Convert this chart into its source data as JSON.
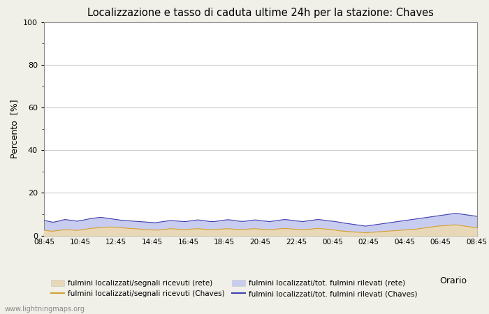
{
  "title": "Localizzazione e tasso di caduta ultime 24h per la stazione: Chaves",
  "xlabel": "Orario",
  "ylabel": "Percento  [%]",
  "ylim": [
    0,
    100
  ],
  "yticks_major": [
    0,
    20,
    40,
    60,
    80,
    100
  ],
  "yticks_minor": [
    10,
    30,
    50,
    70,
    90
  ],
  "x_labels": [
    "08:45",
    "10:45",
    "12:45",
    "14:45",
    "16:45",
    "18:45",
    "20:45",
    "22:45",
    "00:45",
    "02:45",
    "04:45",
    "06:45",
    "08:45"
  ],
  "color_fill_rete": "#e8d8b8",
  "color_fill_chaves": "#c8ccee",
  "color_line_rete": "#d4a030",
  "color_line_chaves": "#4040b0",
  "bg_color": "#ffffff",
  "fig_bg_color": "#f0f0e8",
  "watermark": "www.lightningmaps.org",
  "legend_labels": [
    "fulmini localizzati/segnali ricevuti (rete)",
    "fulmini localizzati/tot. fulmini rilevati (rete)",
    "fulmini localizzati/segnali ricevuti (Chaves)",
    "fulmini localizzati/tot. fulmini rilevati (Chaves)"
  ],
  "n_points": 145,
  "fill_rete_values": [
    2.5,
    2.3,
    2.1,
    2.0,
    2.2,
    2.4,
    2.6,
    2.8,
    2.7,
    2.6,
    2.5,
    2.4,
    2.6,
    2.8,
    3.0,
    3.2,
    3.4,
    3.5,
    3.6,
    3.7,
    3.8,
    3.9,
    4.0,
    3.9,
    3.8,
    3.7,
    3.6,
    3.5,
    3.4,
    3.3,
    3.2,
    3.1,
    3.0,
    2.9,
    2.8,
    2.7,
    2.6,
    2.5,
    2.6,
    2.7,
    2.8,
    3.0,
    3.2,
    3.1,
    3.0,
    2.9,
    2.8,
    2.7,
    2.9,
    3.0,
    3.1,
    3.2,
    3.1,
    3.0,
    2.9,
    2.8,
    2.7,
    2.8,
    2.9,
    3.0,
    3.1,
    3.2,
    3.1,
    3.0,
    2.9,
    2.8,
    2.7,
    2.8,
    3.0,
    3.1,
    3.2,
    3.1,
    3.0,
    2.9,
    2.8,
    2.7,
    2.8,
    2.9,
    3.1,
    3.2,
    3.3,
    3.2,
    3.1,
    3.0,
    2.9,
    2.8,
    2.7,
    2.8,
    2.9,
    3.0,
    3.2,
    3.3,
    3.2,
    3.1,
    3.0,
    2.9,
    2.8,
    2.5,
    2.3,
    2.1,
    2.0,
    1.9,
    1.8,
    1.7,
    1.6,
    1.5,
    1.4,
    1.3,
    1.4,
    1.5,
    1.6,
    1.7,
    1.8,
    1.9,
    2.0,
    2.1,
    2.2,
    2.3,
    2.4,
    2.5,
    2.6,
    2.7,
    2.8,
    2.9,
    3.0,
    3.2,
    3.4,
    3.6,
    3.8,
    4.0,
    4.2,
    4.4,
    4.5,
    4.6,
    4.7,
    4.8,
    4.9,
    5.0,
    4.8,
    4.6,
    4.4,
    4.2,
    4.0,
    3.8,
    3.6
  ],
  "fill_chaves_values": [
    7.0,
    6.8,
    6.5,
    6.2,
    6.5,
    6.8,
    7.2,
    7.5,
    7.3,
    7.1,
    6.9,
    6.7,
    7.0,
    7.2,
    7.5,
    7.8,
    8.0,
    8.2,
    8.4,
    8.5,
    8.3,
    8.1,
    7.9,
    7.7,
    7.5,
    7.3,
    7.1,
    7.0,
    6.9,
    6.8,
    6.7,
    6.6,
    6.5,
    6.4,
    6.3,
    6.2,
    6.1,
    6.0,
    6.2,
    6.4,
    6.6,
    6.8,
    7.0,
    6.9,
    6.8,
    6.7,
    6.6,
    6.5,
    6.7,
    6.9,
    7.1,
    7.3,
    7.2,
    7.0,
    6.8,
    6.6,
    6.5,
    6.6,
    6.8,
    7.0,
    7.2,
    7.4,
    7.3,
    7.1,
    6.9,
    6.7,
    6.6,
    6.7,
    6.9,
    7.1,
    7.3,
    7.2,
    7.0,
    6.8,
    6.7,
    6.5,
    6.7,
    6.9,
    7.1,
    7.3,
    7.5,
    7.4,
    7.2,
    7.0,
    6.8,
    6.7,
    6.5,
    6.7,
    6.9,
    7.1,
    7.3,
    7.5,
    7.4,
    7.2,
    7.0,
    6.8,
    6.7,
    6.5,
    6.3,
    6.0,
    5.8,
    5.6,
    5.4,
    5.2,
    5.0,
    4.8,
    4.6,
    4.4,
    4.6,
    4.8,
    5.0,
    5.2,
    5.4,
    5.6,
    5.8,
    6.0,
    6.2,
    6.4,
    6.6,
    6.8,
    7.0,
    7.2,
    7.4,
    7.6,
    7.8,
    8.0,
    8.2,
    8.4,
    8.6,
    8.8,
    9.0,
    9.2,
    9.4,
    9.6,
    9.8,
    10.0,
    10.2,
    10.4,
    10.2,
    10.0,
    9.8,
    9.6,
    9.4,
    9.2,
    9.0
  ]
}
